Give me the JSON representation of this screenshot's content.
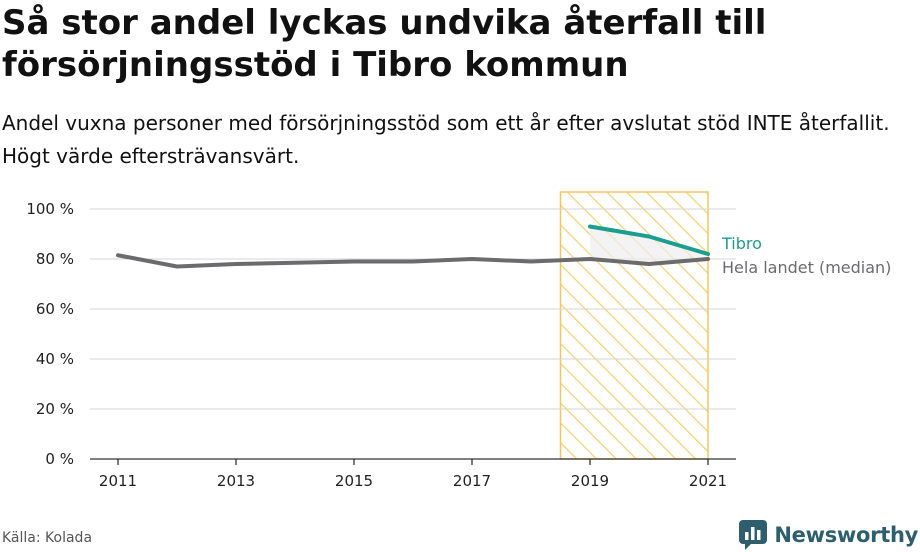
{
  "header": {
    "title": "Så stor andel lyckas undvika återfall till försörjningsstöd i Tibro kommun",
    "subtitle": "Andel vuxna personer med försörjningsstöd som ett år efter avslutat stöd INTE återfallit. Högt värde eftersträvansvärt."
  },
  "footer": {
    "source": "Källa: Kolada",
    "brand": "Newsworthy",
    "brand_icon": "newsworthy-logo-icon"
  },
  "colors": {
    "tibro": "#1a9e8f",
    "median": "#6b6b6e",
    "highlight_fill": "#fbe7b3",
    "highlight_stroke": "#f3c75a",
    "grid": "#d6d6d6",
    "brand": "#2e5f6f"
  },
  "chart_data": {
    "type": "line",
    "x_range": [
      2011,
      2021
    ],
    "ylim": [
      0,
      100
    ],
    "y_ticks": [
      0,
      20,
      40,
      60,
      80,
      100
    ],
    "y_tick_labels": [
      "0 %",
      "20 %",
      "40 %",
      "60 %",
      "80 %",
      "100 %"
    ],
    "x_ticks": [
      2011,
      2013,
      2015,
      2017,
      2019,
      2021
    ],
    "x_tick_labels": [
      "2011",
      "2013",
      "2015",
      "2017",
      "2019",
      "2021"
    ],
    "grid": "horizontal",
    "highlight_range": [
      2018.5,
      2021
    ],
    "series": [
      {
        "name": "Tibro",
        "color": "#1a9e8f",
        "x": [
          2019,
          2020,
          2021
        ],
        "y": [
          93,
          89,
          82
        ]
      },
      {
        "name": "Hela landet (median)",
        "color": "#6b6b6e",
        "x": [
          2011,
          2012,
          2013,
          2014,
          2015,
          2016,
          2017,
          2018,
          2019,
          2020,
          2021
        ],
        "y": [
          81.5,
          77,
          78,
          78.5,
          79,
          79,
          80,
          79,
          80,
          78,
          80
        ]
      }
    ]
  }
}
